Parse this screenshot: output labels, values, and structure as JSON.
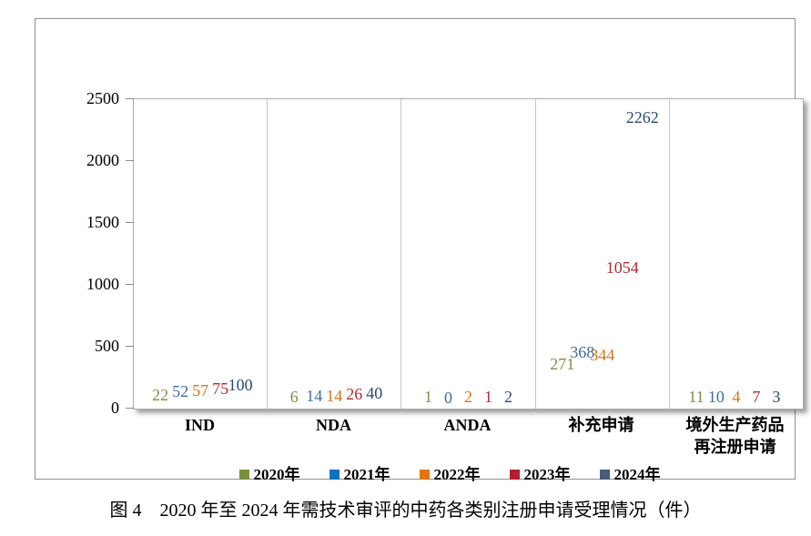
{
  "chart_data": {
    "type": "bar",
    "title": "",
    "categories": [
      "IND",
      "NDA",
      "ANDA",
      "补充申请",
      "境外生产药品\n再注册申请"
    ],
    "series": [
      {
        "name": "2020年",
        "color": "#78923C",
        "label_color": "#7C8F45",
        "values": [
          22,
          6,
          1,
          271,
          11
        ]
      },
      {
        "name": "2021年",
        "color": "#0D72BE",
        "label_color": "#3C6E9F",
        "values": [
          52,
          14,
          0,
          368,
          10
        ]
      },
      {
        "name": "2022年",
        "color": "#E7740D",
        "label_color": "#DB7217",
        "values": [
          57,
          14,
          2,
          344,
          4
        ]
      },
      {
        "name": "2023年",
        "color": "#B1202E",
        "label_color": "#B42A31",
        "values": [
          75,
          26,
          1,
          1054,
          7
        ]
      },
      {
        "name": "2024年",
        "color": "#4A5B76",
        "label_color": "#2C4A70",
        "values": [
          100,
          40,
          2,
          2262,
          3
        ]
      }
    ],
    "y_ticks": [
      0,
      500,
      1000,
      1500,
      2000,
      2500
    ],
    "ylim": [
      0,
      2500
    ],
    "xlabel": "",
    "ylabel": "",
    "legend_position": "bottom",
    "grid": false
  },
  "caption": "图 4　2020 年至 2024 年需技术审评的中药各类别注册申请受理情况（件）"
}
